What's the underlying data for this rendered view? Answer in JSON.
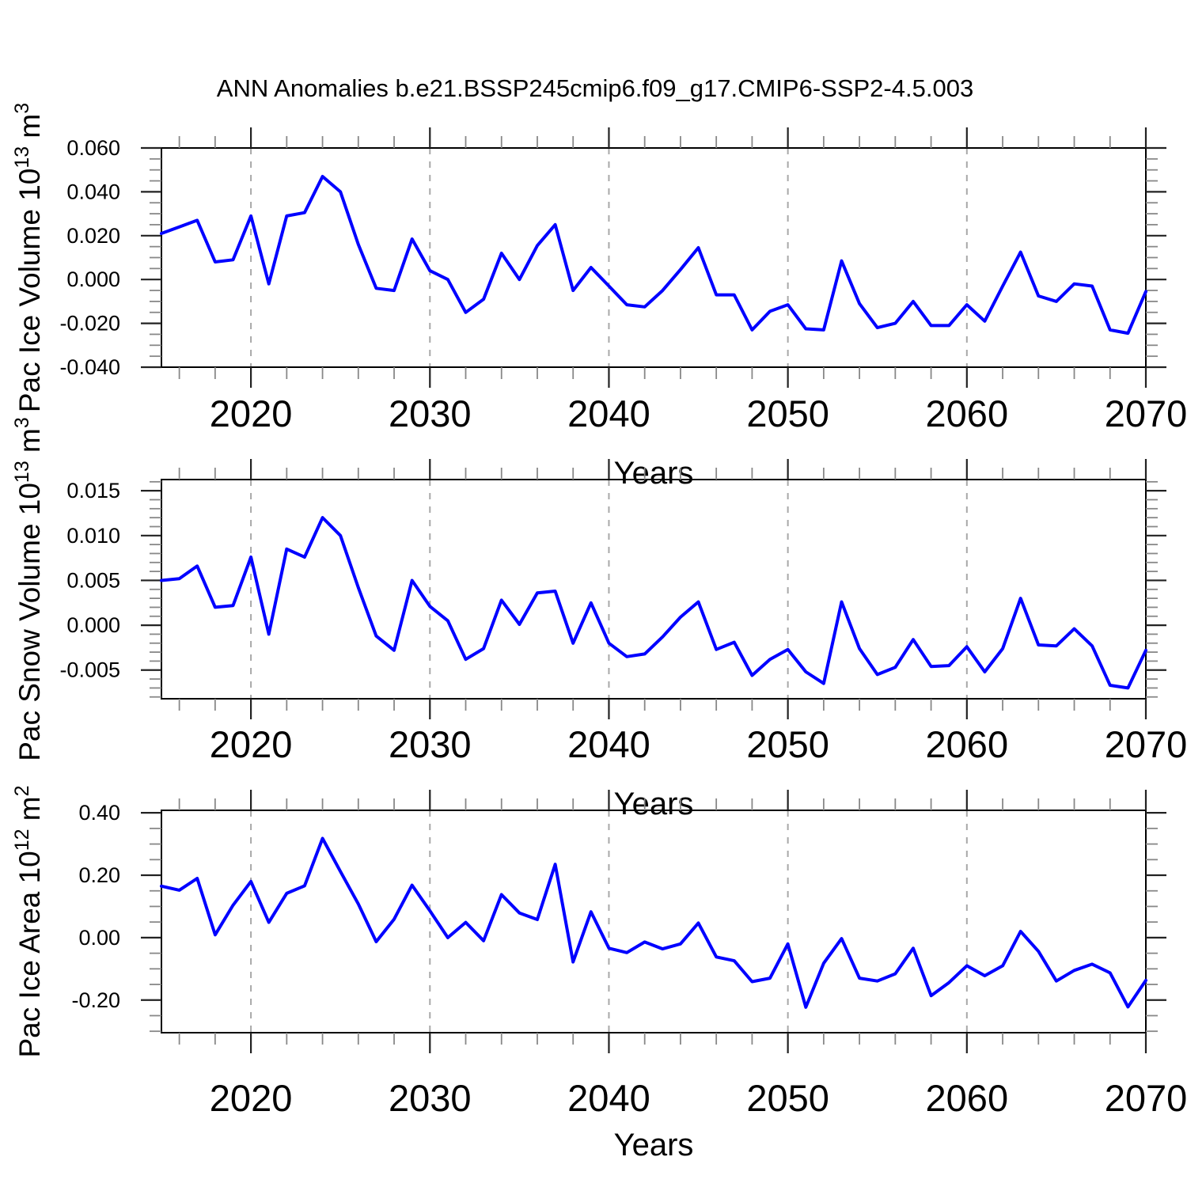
{
  "title": "ANN Anomalies b.e21.BSSP245cmip6.f09_g17.CMIP6-SSP2-4.5.003",
  "xlabel": "Years",
  "line_color": "#0000ff",
  "grid_color": "#a8a8a8",
  "frame_color": "#000000",
  "major_tick_color": "#222222",
  "minor_tick_color": "#888888",
  "years_range": [
    2015,
    2070
  ],
  "years": [
    2015,
    2016,
    2017,
    2018,
    2019,
    2020,
    2021,
    2022,
    2023,
    2024,
    2025,
    2026,
    2027,
    2028,
    2029,
    2030,
    2031,
    2032,
    2033,
    2034,
    2035,
    2036,
    2037,
    2038,
    2039,
    2040,
    2041,
    2042,
    2043,
    2044,
    2045,
    2046,
    2047,
    2048,
    2049,
    2050,
    2051,
    2052,
    2053,
    2054,
    2055,
    2056,
    2057,
    2058,
    2059,
    2060,
    2061,
    2062,
    2063,
    2064,
    2065,
    2066,
    2067,
    2068,
    2069,
    2070
  ],
  "x_major_ticks": [
    2020,
    2030,
    2040,
    2050,
    2060,
    2070
  ],
  "x_minor_step": 2,
  "grid_years": [
    2020,
    2030,
    2040,
    2050,
    2060
  ],
  "chart_data": [
    {
      "type": "line",
      "ylabel": "Pac Ice Volume 10¹³ m³",
      "ylabel_parts": {
        "base": "Pac Ice Volume 10",
        "exp": "13",
        "unit": " m",
        "unit_exp": "3"
      },
      "xlabel": "Years",
      "ylim": [
        -0.04,
        0.06
      ],
      "y_minor_step": 0.005,
      "grid": "x-dashed",
      "legend": "none",
      "yticks": [
        {
          "v": 0.06,
          "label": "0.060"
        },
        {
          "v": 0.04,
          "label": "0.040"
        },
        {
          "v": 0.02,
          "label": "0.020"
        },
        {
          "v": 0.0,
          "label": "0.000"
        },
        {
          "v": -0.02,
          "label": "-0.020"
        },
        {
          "v": -0.04,
          "label": "-0.040"
        }
      ],
      "values": [
        0.021,
        0.024,
        0.027,
        0.008,
        0.009,
        0.029,
        -0.002,
        0.029,
        0.0305,
        0.047,
        0.04,
        0.016,
        -0.004,
        -0.005,
        0.0185,
        0.004,
        0.0,
        -0.015,
        -0.009,
        0.012,
        0.0,
        0.0155,
        0.025,
        -0.005,
        0.0055,
        -0.003,
        -0.0115,
        -0.0125,
        -0.005,
        0.0045,
        0.0145,
        -0.007,
        -0.007,
        -0.023,
        -0.0145,
        -0.0115,
        -0.0225,
        -0.023,
        0.0085,
        -0.011,
        -0.022,
        -0.02,
        -0.01,
        -0.021,
        -0.021,
        -0.0115,
        -0.019,
        -0.003,
        0.0125,
        -0.0075,
        -0.01,
        -0.002,
        -0.003,
        -0.023,
        -0.0245,
        -0.0055
      ]
    },
    {
      "type": "line",
      "ylabel": "Pac Snow Volume 10¹³ m³",
      "ylabel_parts": {
        "base": "Pac Snow Volume 10",
        "exp": "13",
        "unit": " m",
        "unit_exp": "3"
      },
      "xlabel": "Years",
      "ylim": [
        -0.0082,
        0.01625
      ],
      "y_minor_step": 0.001,
      "grid": "x-dashed",
      "legend": "none",
      "yticks": [
        {
          "v": 0.015,
          "label": "0.015"
        },
        {
          "v": 0.01,
          "label": "0.010"
        },
        {
          "v": 0.005,
          "label": "0.005"
        },
        {
          "v": 0.0,
          "label": "0.000"
        },
        {
          "v": -0.005,
          "label": "-0.005"
        }
      ],
      "values": [
        0.005,
        0.0052,
        0.0066,
        0.002,
        0.0022,
        0.0076,
        -0.001,
        0.0085,
        0.0076,
        0.012,
        0.01,
        0.0042,
        -0.0012,
        -0.0028,
        0.005,
        0.0021,
        0.0005,
        -0.0038,
        -0.0026,
        0.0028,
        0.0001,
        0.0036,
        0.0038,
        -0.002,
        0.0025,
        -0.002,
        -0.0035,
        -0.0032,
        -0.0013,
        0.0009,
        0.0026,
        -0.0027,
        -0.0019,
        -0.0056,
        -0.0038,
        -0.0027,
        -0.0052,
        -0.0065,
        0.0026,
        -0.0026,
        -0.0055,
        -0.0047,
        -0.0016,
        -0.0046,
        -0.0045,
        -0.0024,
        -0.0052,
        -0.0026,
        0.003,
        -0.0022,
        -0.0023,
        -0.0004,
        -0.0023,
        -0.0067,
        -0.007,
        -0.0028
      ]
    },
    {
      "type": "line",
      "ylabel": "Pac Ice Area 10¹² m²",
      "ylabel_parts": {
        "base": "Pac Ice Area 10",
        "exp": "12",
        "unit": " m",
        "unit_exp": "2"
      },
      "xlabel": "Years",
      "ylim": [
        -0.3046,
        0.408
      ],
      "y_minor_step": 0.05,
      "grid": "x-dashed",
      "legend": "none",
      "yticks": [
        {
          "v": 0.4,
          "label": "0.40"
        },
        {
          "v": 0.2,
          "label": "0.20"
        },
        {
          "v": 0.0,
          "label": "0.00"
        },
        {
          "v": -0.2,
          "label": "-0.20"
        }
      ],
      "values": [
        0.165,
        0.152,
        0.19,
        0.009,
        0.104,
        0.18,
        0.049,
        0.142,
        0.166,
        0.318,
        0.212,
        0.108,
        -0.013,
        0.059,
        0.168,
        0.086,
        0.0,
        0.049,
        -0.01,
        0.138,
        0.079,
        0.058,
        0.235,
        -0.078,
        0.083,
        -0.034,
        -0.048,
        -0.014,
        -0.036,
        -0.02,
        0.047,
        -0.062,
        -0.074,
        -0.141,
        -0.13,
        -0.02,
        -0.223,
        -0.082,
        -0.003,
        -0.13,
        -0.139,
        -0.116,
        -0.034,
        -0.186,
        -0.144,
        -0.09,
        -0.122,
        -0.09,
        0.02,
        -0.044,
        -0.139,
        -0.105,
        -0.085,
        -0.113,
        -0.222,
        -0.137
      ]
    }
  ]
}
